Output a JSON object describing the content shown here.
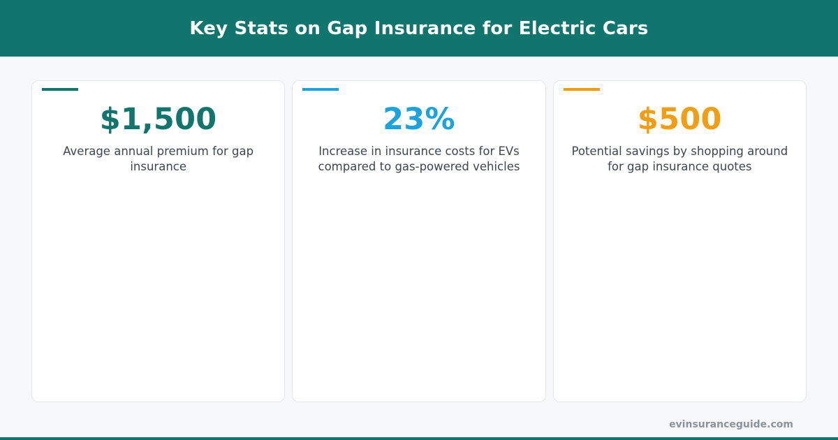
{
  "header": {
    "title": "Key Stats on Gap Insurance for Electric Cars"
  },
  "cards": [
    {
      "value": "$1,500",
      "label": "Average annual premium for gap insurance",
      "accent_color": "#10766d"
    },
    {
      "value": "23%",
      "label": "Increase in insurance costs for EVs compared to gas-powered vehicles",
      "accent_color": "#1aa3dc"
    },
    {
      "value": "$500",
      "label": "Potential savings by shopping around for gap insurance quotes",
      "accent_color": "#f29e12"
    }
  ],
  "footer": {
    "brand": "evinsuranceguide.com"
  },
  "colors": {
    "brand": "#10766d",
    "background": "#f7f8fa",
    "text": "#3f4650"
  }
}
